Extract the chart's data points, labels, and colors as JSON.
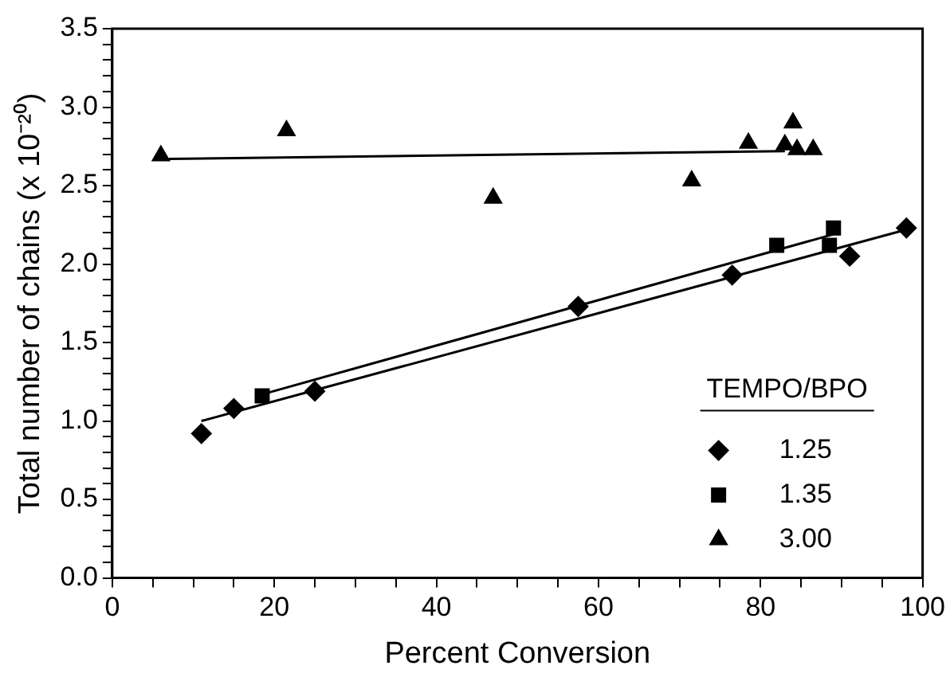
{
  "chart_data": {
    "type": "scatter",
    "xlabel": "Percent Conversion",
    "ylabel": "Total number of chains (x 10⁻²⁰)",
    "legend_title": "TEMPO/BPO",
    "legend": "bottom right",
    "grid": false,
    "xlim": [
      0,
      100
    ],
    "ylim": [
      0,
      3.5
    ],
    "xticks": [
      0,
      {
        "value": 5,
        "label": null
      },
      {
        "value": 10,
        "label": null
      },
      {
        "value": 15,
        "label": null
      },
      20,
      {
        "value": 25,
        "label": null
      },
      {
        "value": 30,
        "label": null
      },
      {
        "value": 35,
        "label": null
      },
      40,
      {
        "value": 45,
        "label": null
      },
      {
        "value": 50,
        "label": null
      },
      {
        "value": 55,
        "label": null
      },
      60,
      {
        "value": 65,
        "label": null
      },
      {
        "value": 70,
        "label": null
      },
      {
        "value": 75,
        "label": null
      },
      80,
      {
        "value": 85,
        "label": null
      },
      {
        "value": 90,
        "label": null
      },
      {
        "value": 95,
        "label": null
      },
      100
    ],
    "yticks": [
      {
        "value": 0,
        "label": "0.0"
      },
      {
        "value": 0.1,
        "label": null
      },
      {
        "value": 0.2,
        "label": null
      },
      {
        "value": 0.3,
        "label": null
      },
      {
        "value": 0.4,
        "label": null
      },
      {
        "value": 0.5,
        "label": "0.5"
      },
      {
        "value": 0.6,
        "label": null
      },
      {
        "value": 0.7,
        "label": null
      },
      {
        "value": 0.8,
        "label": null
      },
      {
        "value": 0.9,
        "label": null
      },
      {
        "value": 1,
        "label": "1.0"
      },
      {
        "value": 1.1,
        "label": null
      },
      {
        "value": 1.2,
        "label": null
      },
      {
        "value": 1.3,
        "label": null
      },
      {
        "value": 1.4,
        "label": null
      },
      {
        "value": 1.5,
        "label": "1.5"
      },
      {
        "value": 1.6,
        "label": null
      },
      {
        "value": 1.7,
        "label": null
      },
      {
        "value": 1.8,
        "label": null
      },
      {
        "value": 1.9,
        "label": null
      },
      {
        "value": 2,
        "label": "2.0"
      },
      {
        "value": 2.1,
        "label": null
      },
      {
        "value": 2.2,
        "label": null
      },
      {
        "value": 2.3,
        "label": null
      },
      {
        "value": 2.4,
        "label": null
      },
      {
        "value": 2.5,
        "label": "2.5"
      },
      {
        "value": 2.6,
        "label": null
      },
      {
        "value": 2.7,
        "label": null
      },
      {
        "value": 2.8,
        "label": null
      },
      {
        "value": 2.9,
        "label": null
      },
      {
        "value": 3,
        "label": "3.0"
      },
      {
        "value": 3.1,
        "label": null
      },
      {
        "value": 3.2,
        "label": null
      },
      {
        "value": 3.3,
        "label": null
      },
      {
        "value": 3.4,
        "label": null
      },
      {
        "value": 3.5,
        "label": "3.5"
      }
    ],
    "series": [
      {
        "name": "1.25",
        "color": "#000000",
        "marker": "diamond",
        "x": [
          11,
          15,
          25,
          57.5,
          76.5,
          91,
          98
        ],
        "values": [
          0.92,
          1.08,
          1.19,
          1.73,
          1.93,
          2.05,
          2.23
        ]
      },
      {
        "name": "1.35",
        "color": "#000000",
        "marker": "square",
        "x": [
          18.5,
          82,
          88.5,
          89
        ],
        "values": [
          1.16,
          2.12,
          2.12,
          2.23
        ]
      },
      {
        "name": "3.00",
        "color": "#000000",
        "marker": "triangle",
        "x": [
          6,
          21.5,
          47,
          71.5,
          78.5,
          83,
          84,
          84.5,
          86.5
        ],
        "values": [
          2.69,
          2.85,
          2.42,
          2.53,
          2.77,
          2.76,
          2.9,
          2.73,
          2.73
        ]
      },
      {
        "type": "line",
        "color": "#000000",
        "marker": "none",
        "line_style": "solid",
        "x": [
          11,
          98
        ],
        "values": [
          1.0,
          2.22
        ]
      },
      {
        "type": "line",
        "color": "#000000",
        "marker": "none",
        "line_style": "solid",
        "x": [
          18.5,
          89
        ],
        "values": [
          1.17,
          2.19
        ]
      },
      {
        "type": "line",
        "color": "#000000",
        "marker": "none",
        "line_style": "solid",
        "x": [
          7,
          83
        ],
        "values": [
          2.67,
          2.72
        ]
      }
    ]
  }
}
